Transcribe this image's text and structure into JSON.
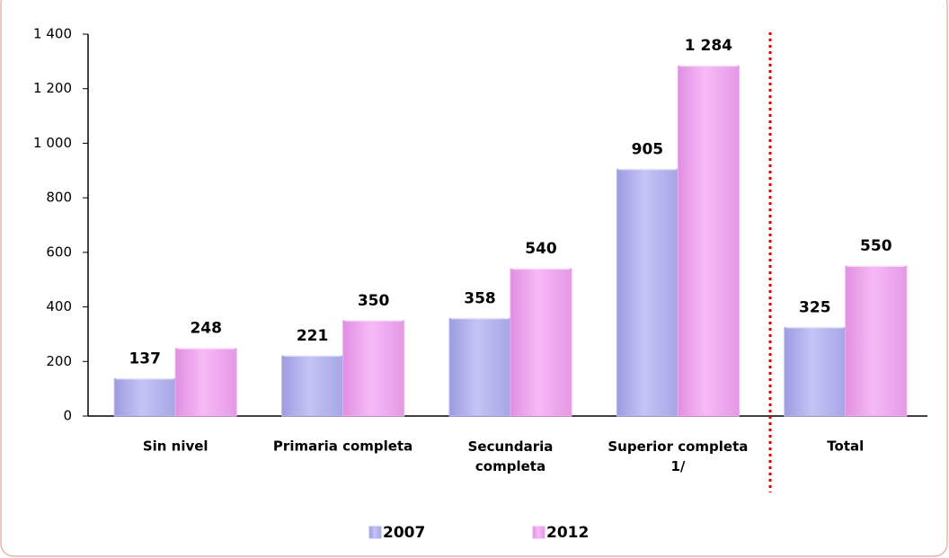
{
  "chart_data": {
    "type": "bar",
    "categories": [
      "Sin nivel",
      "Primaria completa",
      "Secundaria\ncompleta",
      "Superior completa\n1/",
      "Total"
    ],
    "series": [
      {
        "name": "2007",
        "color": "#b8b8f2",
        "values": [
          137,
          221,
          358,
          905,
          325
        ],
        "value_labels": [
          "137",
          "221",
          "358",
          "905",
          "325"
        ]
      },
      {
        "name": "2012",
        "color": "#f2aaf2",
        "values": [
          248,
          350,
          540,
          1284,
          550
        ],
        "value_labels": [
          "248",
          "350",
          "540",
          "1 284",
          "550"
        ]
      }
    ],
    "ylim": [
      0,
      1400
    ],
    "yticks": [
      0,
      200,
      400,
      600,
      800,
      {
        "value": 1000,
        "label": "1 000"
      },
      {
        "value": 1200,
        "label": "1 200"
      },
      {
        "value": 1400,
        "label": "1 400"
      }
    ],
    "legend": "bottom"
  }
}
